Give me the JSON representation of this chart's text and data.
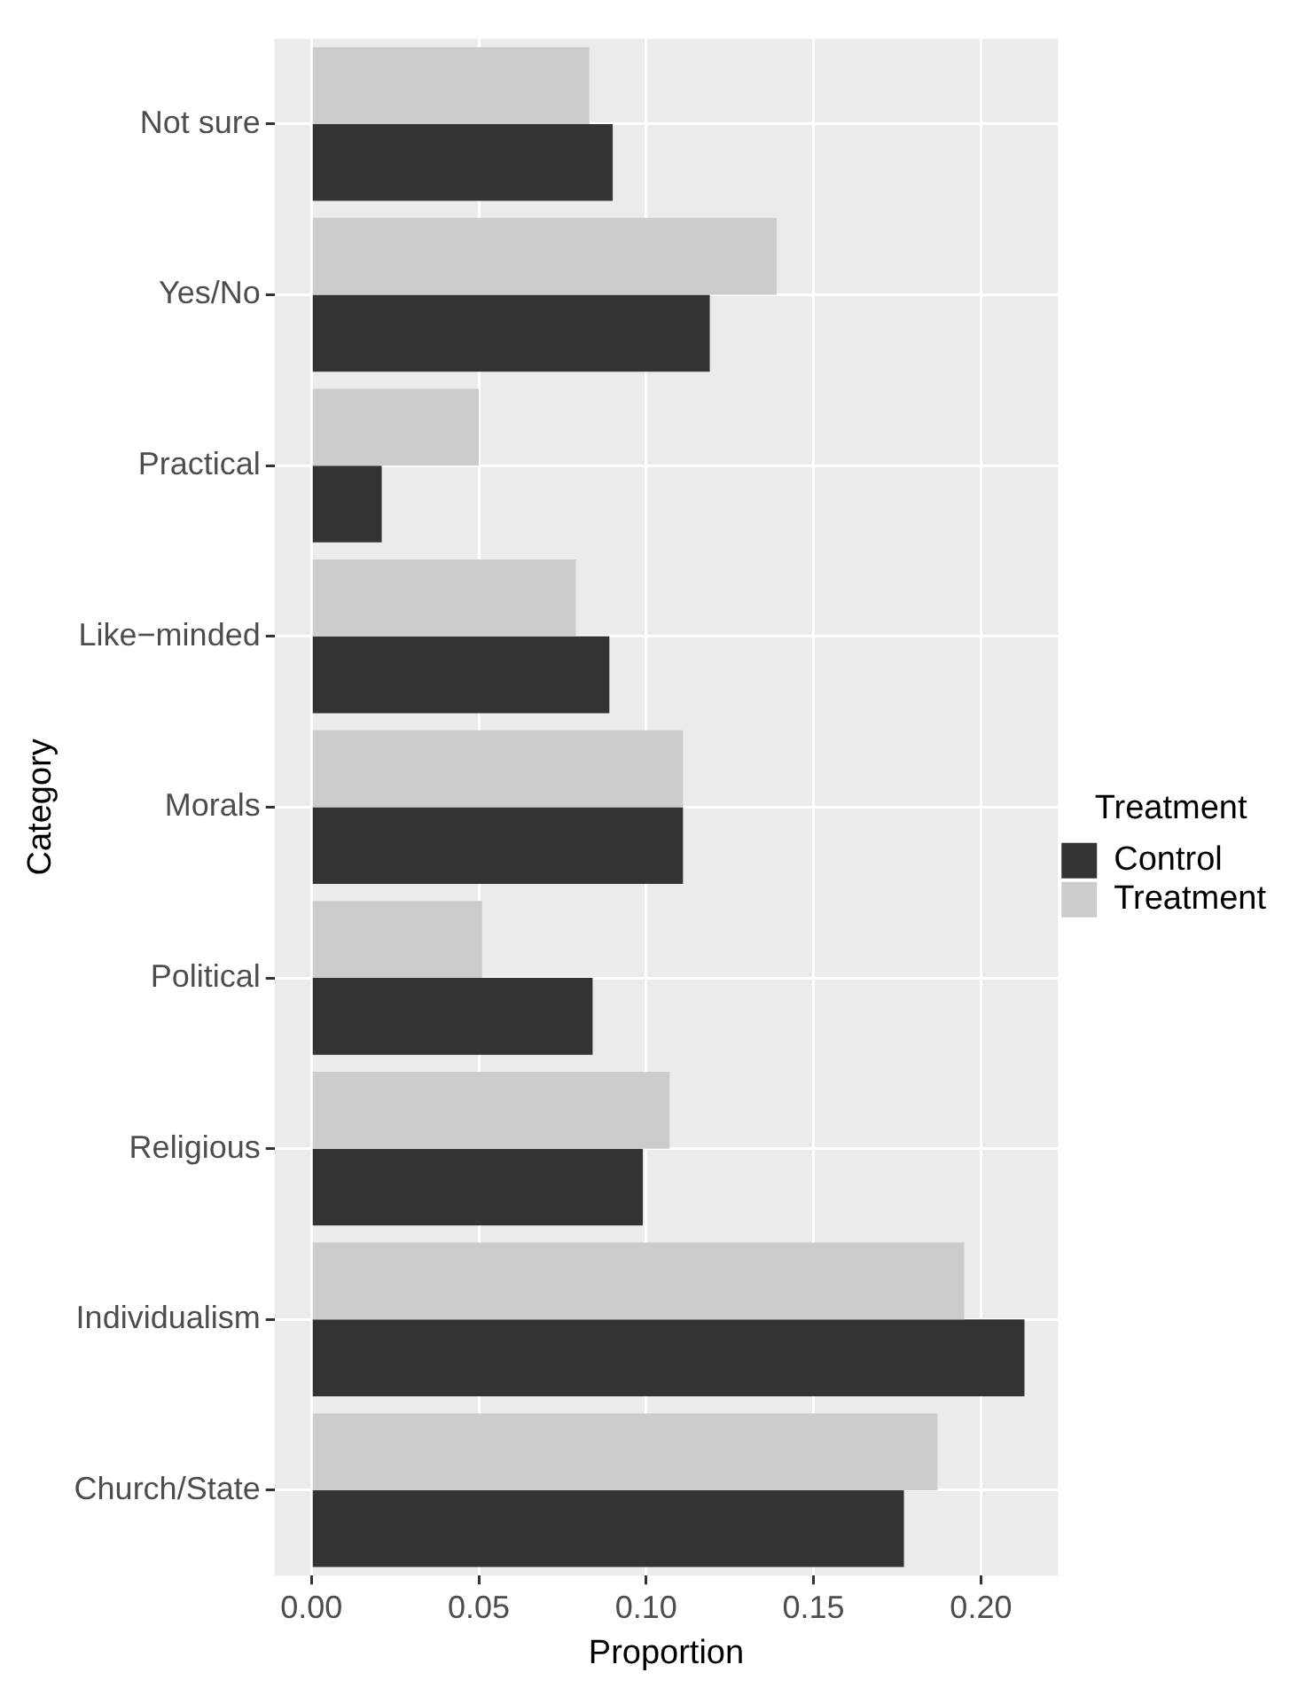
{
  "chart_data": {
    "type": "bar",
    "orientation": "horizontal",
    "xlabel": "Proportion",
    "ylabel": "Category",
    "legend_title": "Treatment",
    "legend": "right",
    "categories": [
      "Not sure",
      "Yes/No",
      "Practical",
      "Like−minded",
      "Morals",
      "Political",
      "Religious",
      "Individualism",
      "Church/State"
    ],
    "series": [
      {
        "name": "Control",
        "color": "#333333",
        "values": [
          0.09,
          0.119,
          0.021,
          0.089,
          0.111,
          0.084,
          0.099,
          0.213,
          0.177
        ]
      },
      {
        "name": "Treatment",
        "color": "#cccccc",
        "values": [
          0.083,
          0.139,
          0.05,
          0.079,
          0.111,
          0.051,
          0.107,
          0.195,
          0.187
        ]
      }
    ],
    "xlim": [
      -0.011,
      0.223
    ],
    "xticks": [
      {
        "value": 0,
        "label": "0.00"
      },
      {
        "value": 0.05,
        "label": "0.05"
      },
      {
        "value": 0.1,
        "label": "0.10"
      },
      {
        "value": 0.15,
        "label": "0.15"
      },
      {
        "value": 0.2,
        "label": "0.20"
      }
    ],
    "grid": true
  }
}
